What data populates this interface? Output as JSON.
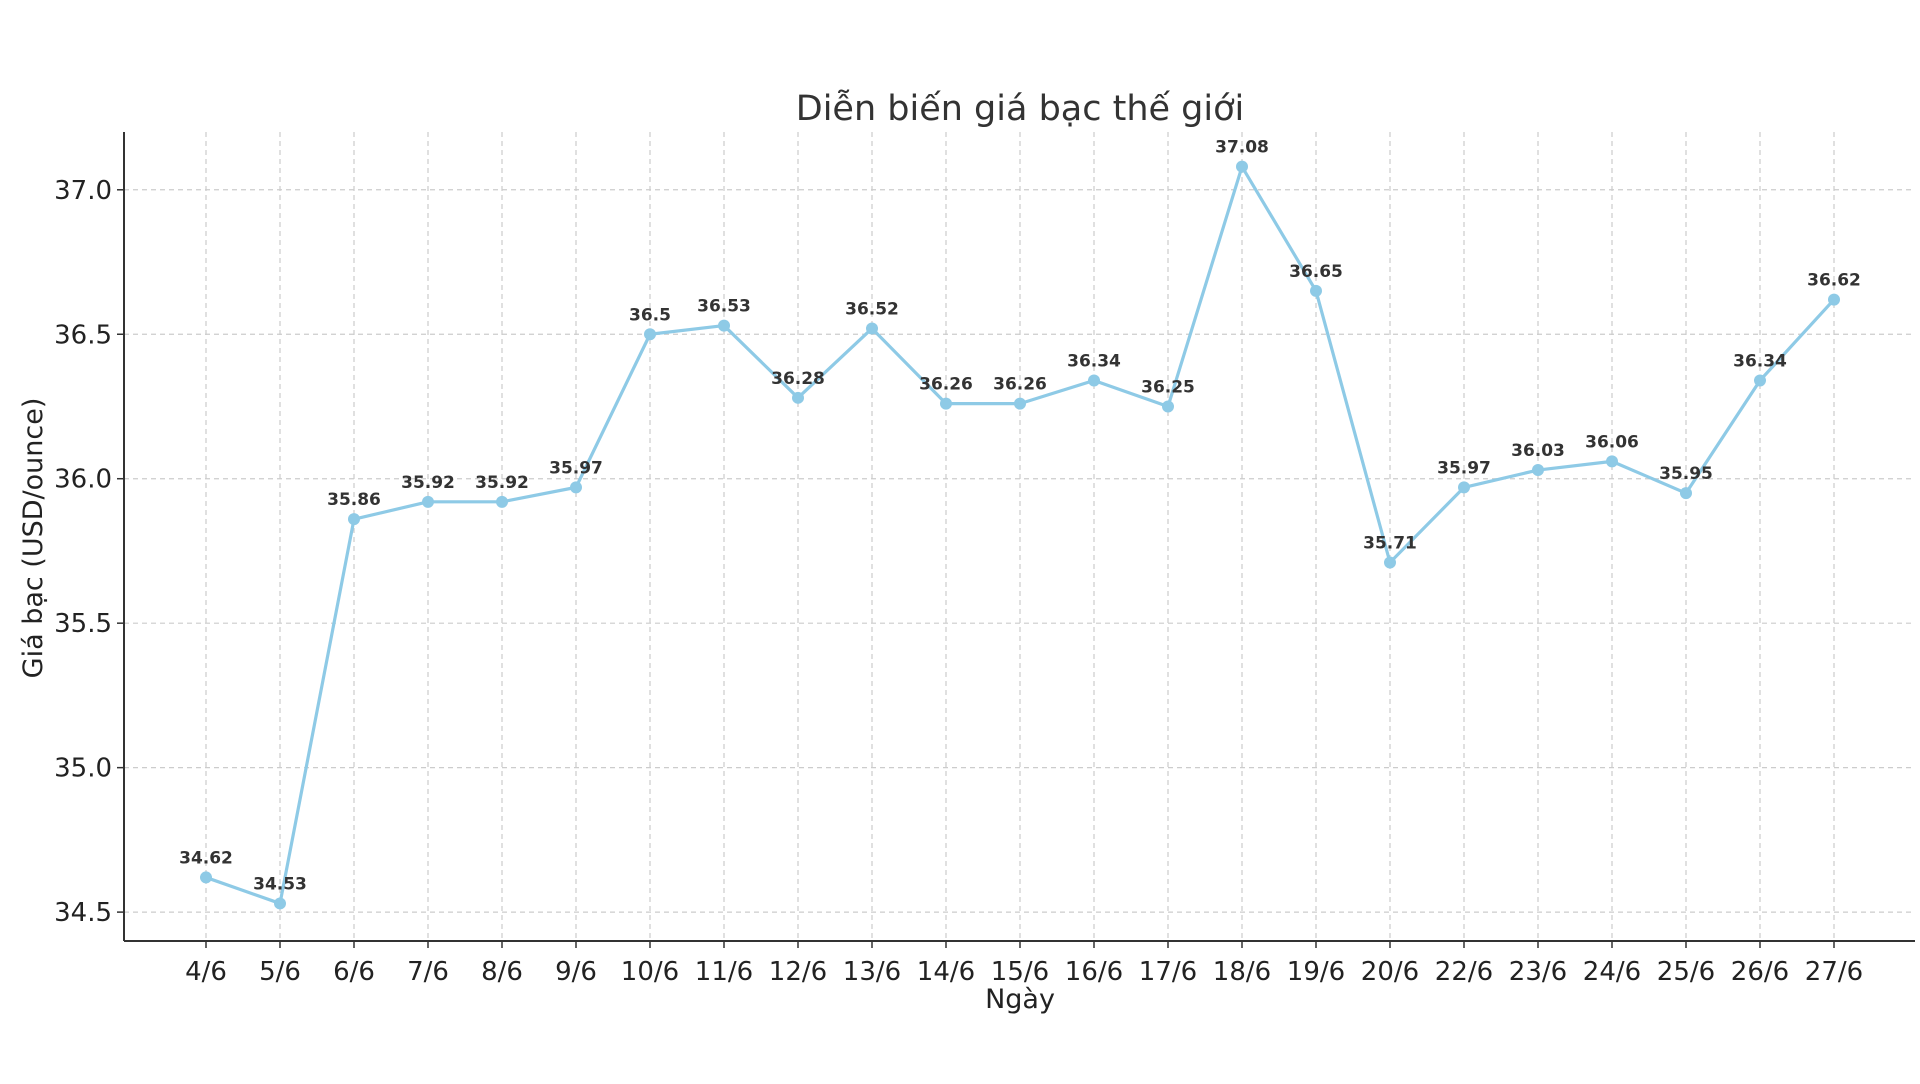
{
  "chart_data": {
    "type": "line",
    "title": "Diễn biến giá bạc thế giới",
    "xlabel": "Ngày",
    "ylabel": "Giá bạc (USD/ounce)",
    "categories": [
      "4/6",
      "5/6",
      "6/6",
      "7/6",
      "8/6",
      "9/6",
      "10/6",
      "11/6",
      "12/6",
      "13/6",
      "14/6",
      "15/6",
      "16/6",
      "17/6",
      "18/6",
      "19/6",
      "20/6",
      "22/6",
      "23/6",
      "24/6",
      "25/6",
      "26/6",
      "27/6"
    ],
    "series": [
      {
        "values": [
          34.62,
          34.53,
          35.86,
          35.92,
          35.92,
          35.97,
          36.5,
          36.53,
          36.28,
          36.52,
          36.26,
          36.26,
          36.34,
          36.25,
          37.08,
          36.65,
          35.71,
          35.97,
          36.03,
          36.06,
          35.95,
          36.34,
          36.62
        ],
        "labels": [
          "34.62",
          "34.53",
          "35.86",
          "35.92",
          "35.92",
          "35.97",
          "36.5",
          "36.53",
          "36.28",
          "36.52",
          "36.26",
          "36.26",
          "36.34",
          "36.25",
          "37.08",
          "36.65",
          "35.71",
          "35.97",
          "36.03",
          "36.06",
          "35.95",
          "36.34",
          "36.62"
        ]
      }
    ],
    "y_ticks": [
      "34.5",
      "35.0",
      "35.5",
      "36.0",
      "36.5",
      "37.0"
    ],
    "ylim": [
      34.4,
      37.2
    ],
    "grid": true,
    "line_color": "#8ecae6",
    "marker_color": "#8ecae6"
  }
}
